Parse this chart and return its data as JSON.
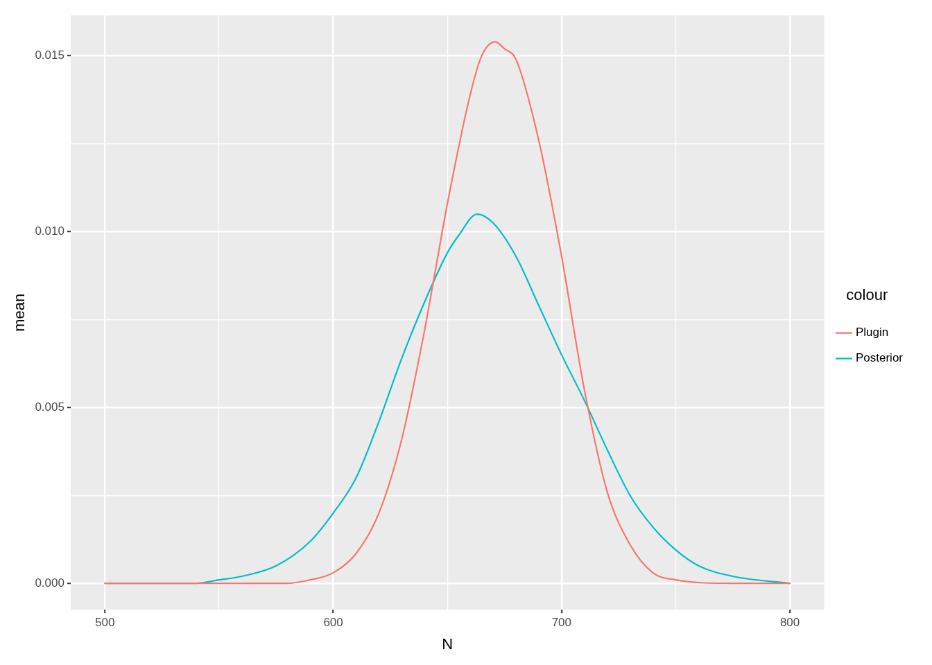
{
  "chart_data": {
    "type": "line",
    "xlabel": "N",
    "ylabel": "mean",
    "legend_title": "colour",
    "legend": "right",
    "grid": true,
    "marker": "none",
    "line_style": "solid",
    "xlim": [
      485,
      815
    ],
    "ylim": [
      -0.00075,
      0.01615
    ],
    "xticks": [
      500,
      {
        "value": 550,
        "label": null
      },
      600,
      {
        "value": 650,
        "label": null
      },
      700,
      {
        "value": 750,
        "label": null
      },
      800
    ],
    "yticks": [
      "0.000",
      {
        "value": 0.0025,
        "label": null
      },
      {
        "value": 0.005,
        "label": "0.005"
      },
      {
        "value": 0.0075,
        "label": null
      },
      {
        "value": 0.01,
        "label": "0.010"
      },
      {
        "value": 0.0125,
        "label": null
      },
      {
        "value": 0.015,
        "label": "0.015"
      }
    ],
    "series": [
      {
        "name": "Plugin",
        "color": "#f8766d",
        "x": [
          500,
          550,
          580,
          590,
          600,
          610,
          620,
          630,
          640,
          645,
          650,
          660,
          665,
          671,
          675,
          680,
          690,
          700,
          710,
          720,
          730,
          740,
          750,
          775,
          800
        ],
        "values": [
          0,
          0,
          0,
          0.0001,
          0.0003,
          0.00085,
          0.002,
          0.0041,
          0.0072,
          0.009,
          0.0108,
          0.0139,
          0.015,
          0.0154,
          0.0152,
          0.0149,
          0.0126,
          0.0093,
          0.0055,
          0.0026,
          0.0011,
          0.0003,
          0.0001,
          0,
          0
        ]
      },
      {
        "name": "Posterior",
        "color": "#00bfc4",
        "x": [
          500,
          525,
          540,
          550,
          560,
          575,
          590,
          600,
          610,
          620,
          625,
          630,
          640,
          650,
          655,
          663,
          670,
          680,
          690,
          700,
          710,
          720,
          730,
          740,
          750,
          760,
          775,
          800
        ],
        "values": [
          0,
          0,
          0,
          0.0001,
          0.0002,
          0.0005,
          0.0012,
          0.002,
          0.003,
          0.0046,
          0.0055,
          0.0064,
          0.008,
          0.0094,
          0.0099,
          0.0105,
          0.01025,
          0.0093,
          0.0079,
          0.0065,
          0.0052,
          0.0038,
          0.0025,
          0.0016,
          0.00095,
          0.0005,
          0.0002,
          0
        ]
      }
    ]
  }
}
